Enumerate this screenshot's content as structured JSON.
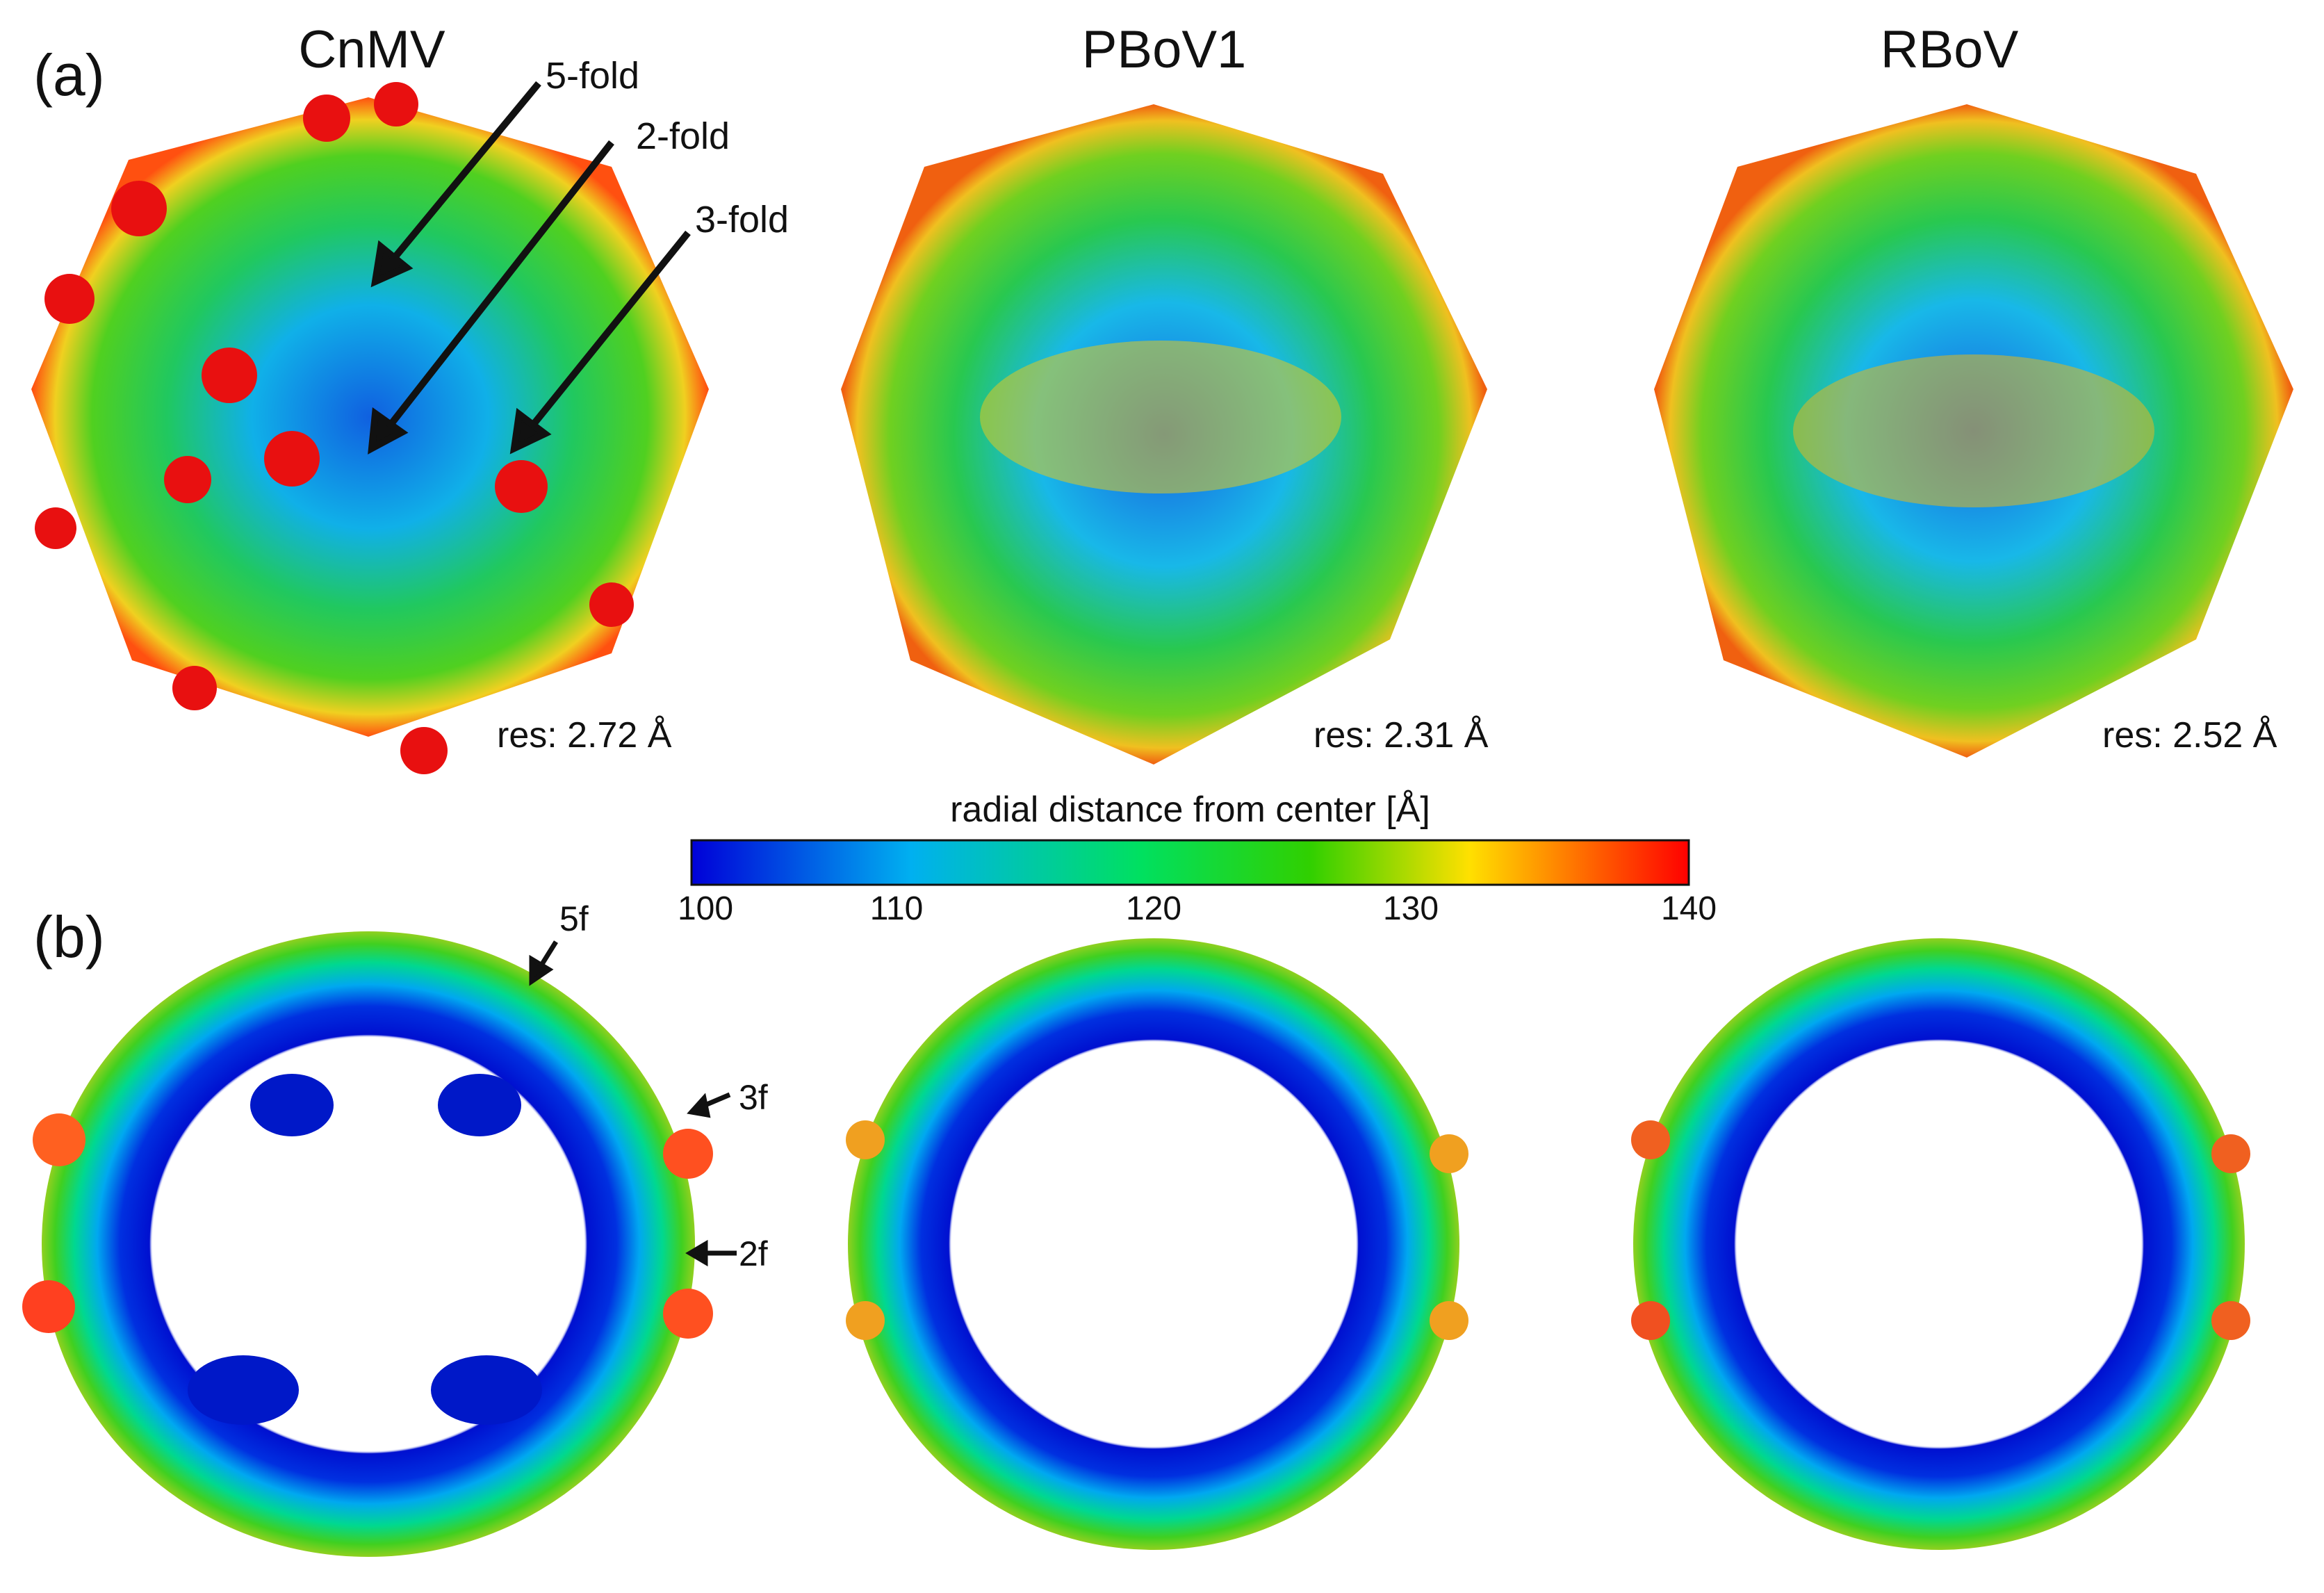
{
  "figure": {
    "panel_a": "(a)",
    "panel_b": "(b)",
    "viruses": [
      "CnMV",
      "PBoV1",
      "RBoV"
    ],
    "resolutions": [
      "res: 2.72 Å",
      "res: 2.31 Å",
      "res: 2.52 Å"
    ]
  },
  "annotations_a": [
    "5-fold",
    "2-fold",
    "3-fold"
  ],
  "annotations_b": [
    "5f",
    "3f",
    "2f"
  ],
  "colorbar": {
    "label": "radial distance from center [Å]",
    "ticks": [
      "100",
      "110",
      "120",
      "130",
      "140"
    ],
    "min": 100,
    "max": 140,
    "colors": [
      "#0000d8",
      "#00b0f0",
      "#00e060",
      "#30d000",
      "#ffe000",
      "#ff7000",
      "#ff0000"
    ]
  }
}
